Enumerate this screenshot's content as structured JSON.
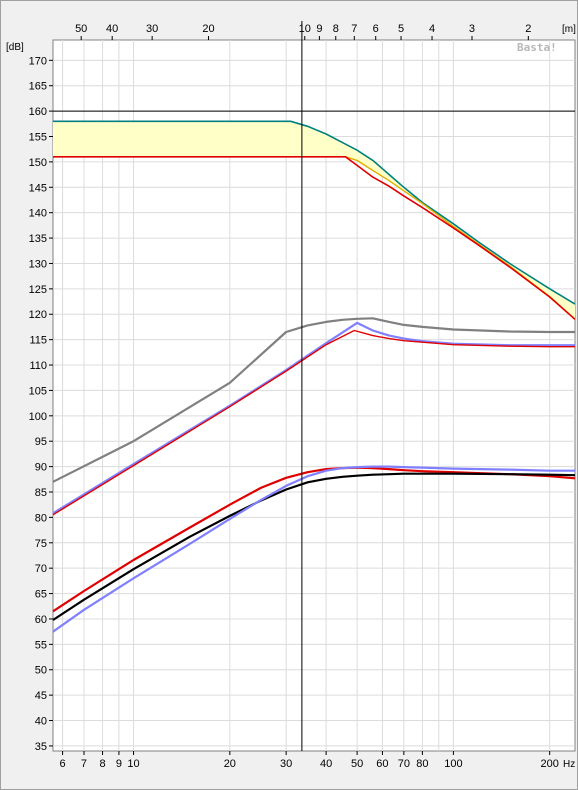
{
  "chart_data": {
    "type": "line",
    "watermark": "Basta!",
    "ylabel": "[dB]",
    "xlabel": "Hz",
    "top_axis_unit": "[m]",
    "ylim": [
      34,
      174
    ],
    "xlim_hz": [
      5.6,
      240
    ],
    "x_scale": "log",
    "grid": true,
    "y_ticks": [
      35,
      40,
      45,
      50,
      55,
      60,
      65,
      70,
      75,
      80,
      85,
      90,
      95,
      100,
      105,
      110,
      115,
      120,
      125,
      130,
      135,
      140,
      145,
      150,
      155,
      160,
      165,
      170
    ],
    "x_ticks": [
      6,
      7,
      8,
      9,
      10,
      20,
      30,
      40,
      50,
      60,
      70,
      80,
      100,
      200
    ],
    "x_tick_labels": [
      "6",
      "7",
      "8",
      "9",
      "10",
      "20",
      "30",
      "40",
      "50",
      "60",
      "70",
      "80",
      "100",
      "200"
    ],
    "top_ticks_m": [
      50,
      40,
      30,
      20,
      10,
      9,
      8,
      7,
      6,
      5,
      4,
      3,
      2
    ],
    "top_tick_labels": [
      "50",
      "40",
      "30",
      "20",
      "10",
      "9",
      "8",
      "7",
      "6",
      "5",
      "4",
      "3",
      "2"
    ],
    "top_axis_speed_of_sound": 343,
    "cursor": {
      "x_hz": 33.6,
      "y_db": 160
    },
    "fill_between": {
      "upper": "teal_max",
      "lower": "yellow_max",
      "color": "#ffffc8"
    },
    "series": [
      {
        "key": "teal_max",
        "color": "#008080",
        "width": 1.6,
        "x": [
          5.6,
          10,
          20,
          31,
          35,
          40,
          45,
          50,
          56,
          63,
          70,
          80,
          100,
          120,
          150,
          200,
          240
        ],
        "y": [
          158,
          158,
          158,
          158,
          157,
          155.5,
          153.8,
          152.3,
          150.3,
          147.5,
          145,
          142,
          137.8,
          134.2,
          130,
          125,
          122
        ]
      },
      {
        "key": "yellow_max",
        "color": "#e0b000",
        "width": 1.4,
        "x": [
          5.6,
          10,
          20,
          30,
          40,
          46,
          50,
          56,
          63,
          70,
          80,
          100,
          120,
          150,
          200,
          240
        ],
        "y": [
          151,
          151,
          151,
          151,
          151,
          151,
          150.3,
          148.3,
          146.3,
          144.3,
          141.8,
          137.3,
          133.8,
          129.5,
          123.5,
          119
        ]
      },
      {
        "key": "red_max",
        "color": "#e00000",
        "width": 1.6,
        "x": [
          5.6,
          10,
          20,
          30,
          40,
          46,
          50,
          56,
          63,
          70,
          80,
          100,
          120,
          150,
          200,
          240
        ],
        "y": [
          151,
          151,
          151,
          151,
          151,
          151,
          149.3,
          147,
          145.2,
          143.3,
          141,
          137,
          133.6,
          129.3,
          123.4,
          119
        ]
      },
      {
        "key": "grey_mid",
        "color": "#808080",
        "width": 2.2,
        "x": [
          5.6,
          10,
          20,
          30,
          35,
          40,
          45,
          50,
          56,
          63,
          70,
          80,
          100,
          150,
          200,
          240
        ],
        "y": [
          87,
          95,
          106.5,
          116.5,
          117.8,
          118.5,
          118.9,
          119.1,
          119.2,
          118.5,
          117.9,
          117.5,
          117,
          116.6,
          116.5,
          116.5
        ]
      },
      {
        "key": "blue_mid",
        "color": "#8080ff",
        "width": 2.2,
        "x": [
          5.6,
          10,
          20,
          30,
          40,
          50,
          56,
          63,
          70,
          80,
          100,
          150,
          200,
          240
        ],
        "y": [
          80.8,
          90.5,
          102,
          109,
          114.3,
          118.3,
          116.8,
          115.8,
          115.2,
          114.7,
          114.2,
          113.9,
          113.9,
          113.9
        ]
      },
      {
        "key": "red_mid",
        "color": "#e00000",
        "width": 1.4,
        "x": [
          5.6,
          10,
          20,
          30,
          40,
          49,
          56,
          63,
          70,
          80,
          100,
          150,
          200,
          240
        ],
        "y": [
          80.5,
          90.2,
          101.8,
          108.8,
          114,
          116.8,
          115.8,
          115.2,
          114.8,
          114.5,
          114,
          113.7,
          113.6,
          113.6
        ]
      },
      {
        "key": "red_low",
        "color": "#e00000",
        "width": 2.2,
        "x": [
          5.6,
          7,
          10,
          15,
          20,
          25,
          30,
          35,
          40,
          45,
          50,
          56,
          63,
          70,
          80,
          100,
          150,
          200,
          240
        ],
        "y": [
          61.5,
          65.5,
          71.6,
          78,
          82.5,
          85.8,
          87.8,
          88.9,
          89.5,
          89.7,
          89.8,
          89.7,
          89.5,
          89.3,
          89.1,
          88.9,
          88.5,
          88.1,
          87.7
        ]
      },
      {
        "key": "black_low",
        "color": "#000000",
        "width": 2.2,
        "x": [
          5.6,
          7,
          10,
          15,
          20,
          25,
          30,
          35,
          40,
          45,
          50,
          56,
          63,
          70,
          80,
          100,
          150,
          200,
          240
        ],
        "y": [
          59.8,
          63.8,
          69.8,
          76.2,
          80.3,
          83.3,
          85.5,
          86.9,
          87.6,
          88,
          88.2,
          88.4,
          88.5,
          88.6,
          88.6,
          88.6,
          88.5,
          88.4,
          88.3
        ]
      },
      {
        "key": "blue_low",
        "color": "#8080ff",
        "width": 2.2,
        "x": [
          5.6,
          7,
          10,
          15,
          20,
          25,
          30,
          35,
          40,
          45,
          50,
          56,
          63,
          70,
          80,
          100,
          150,
          200,
          240
        ],
        "y": [
          57.5,
          61.8,
          68,
          74.8,
          79.7,
          83.4,
          86.2,
          88.1,
          89.2,
          89.7,
          89.9,
          90,
          90,
          89.9,
          89.8,
          89.6,
          89.4,
          89.2,
          89.2
        ]
      }
    ]
  }
}
